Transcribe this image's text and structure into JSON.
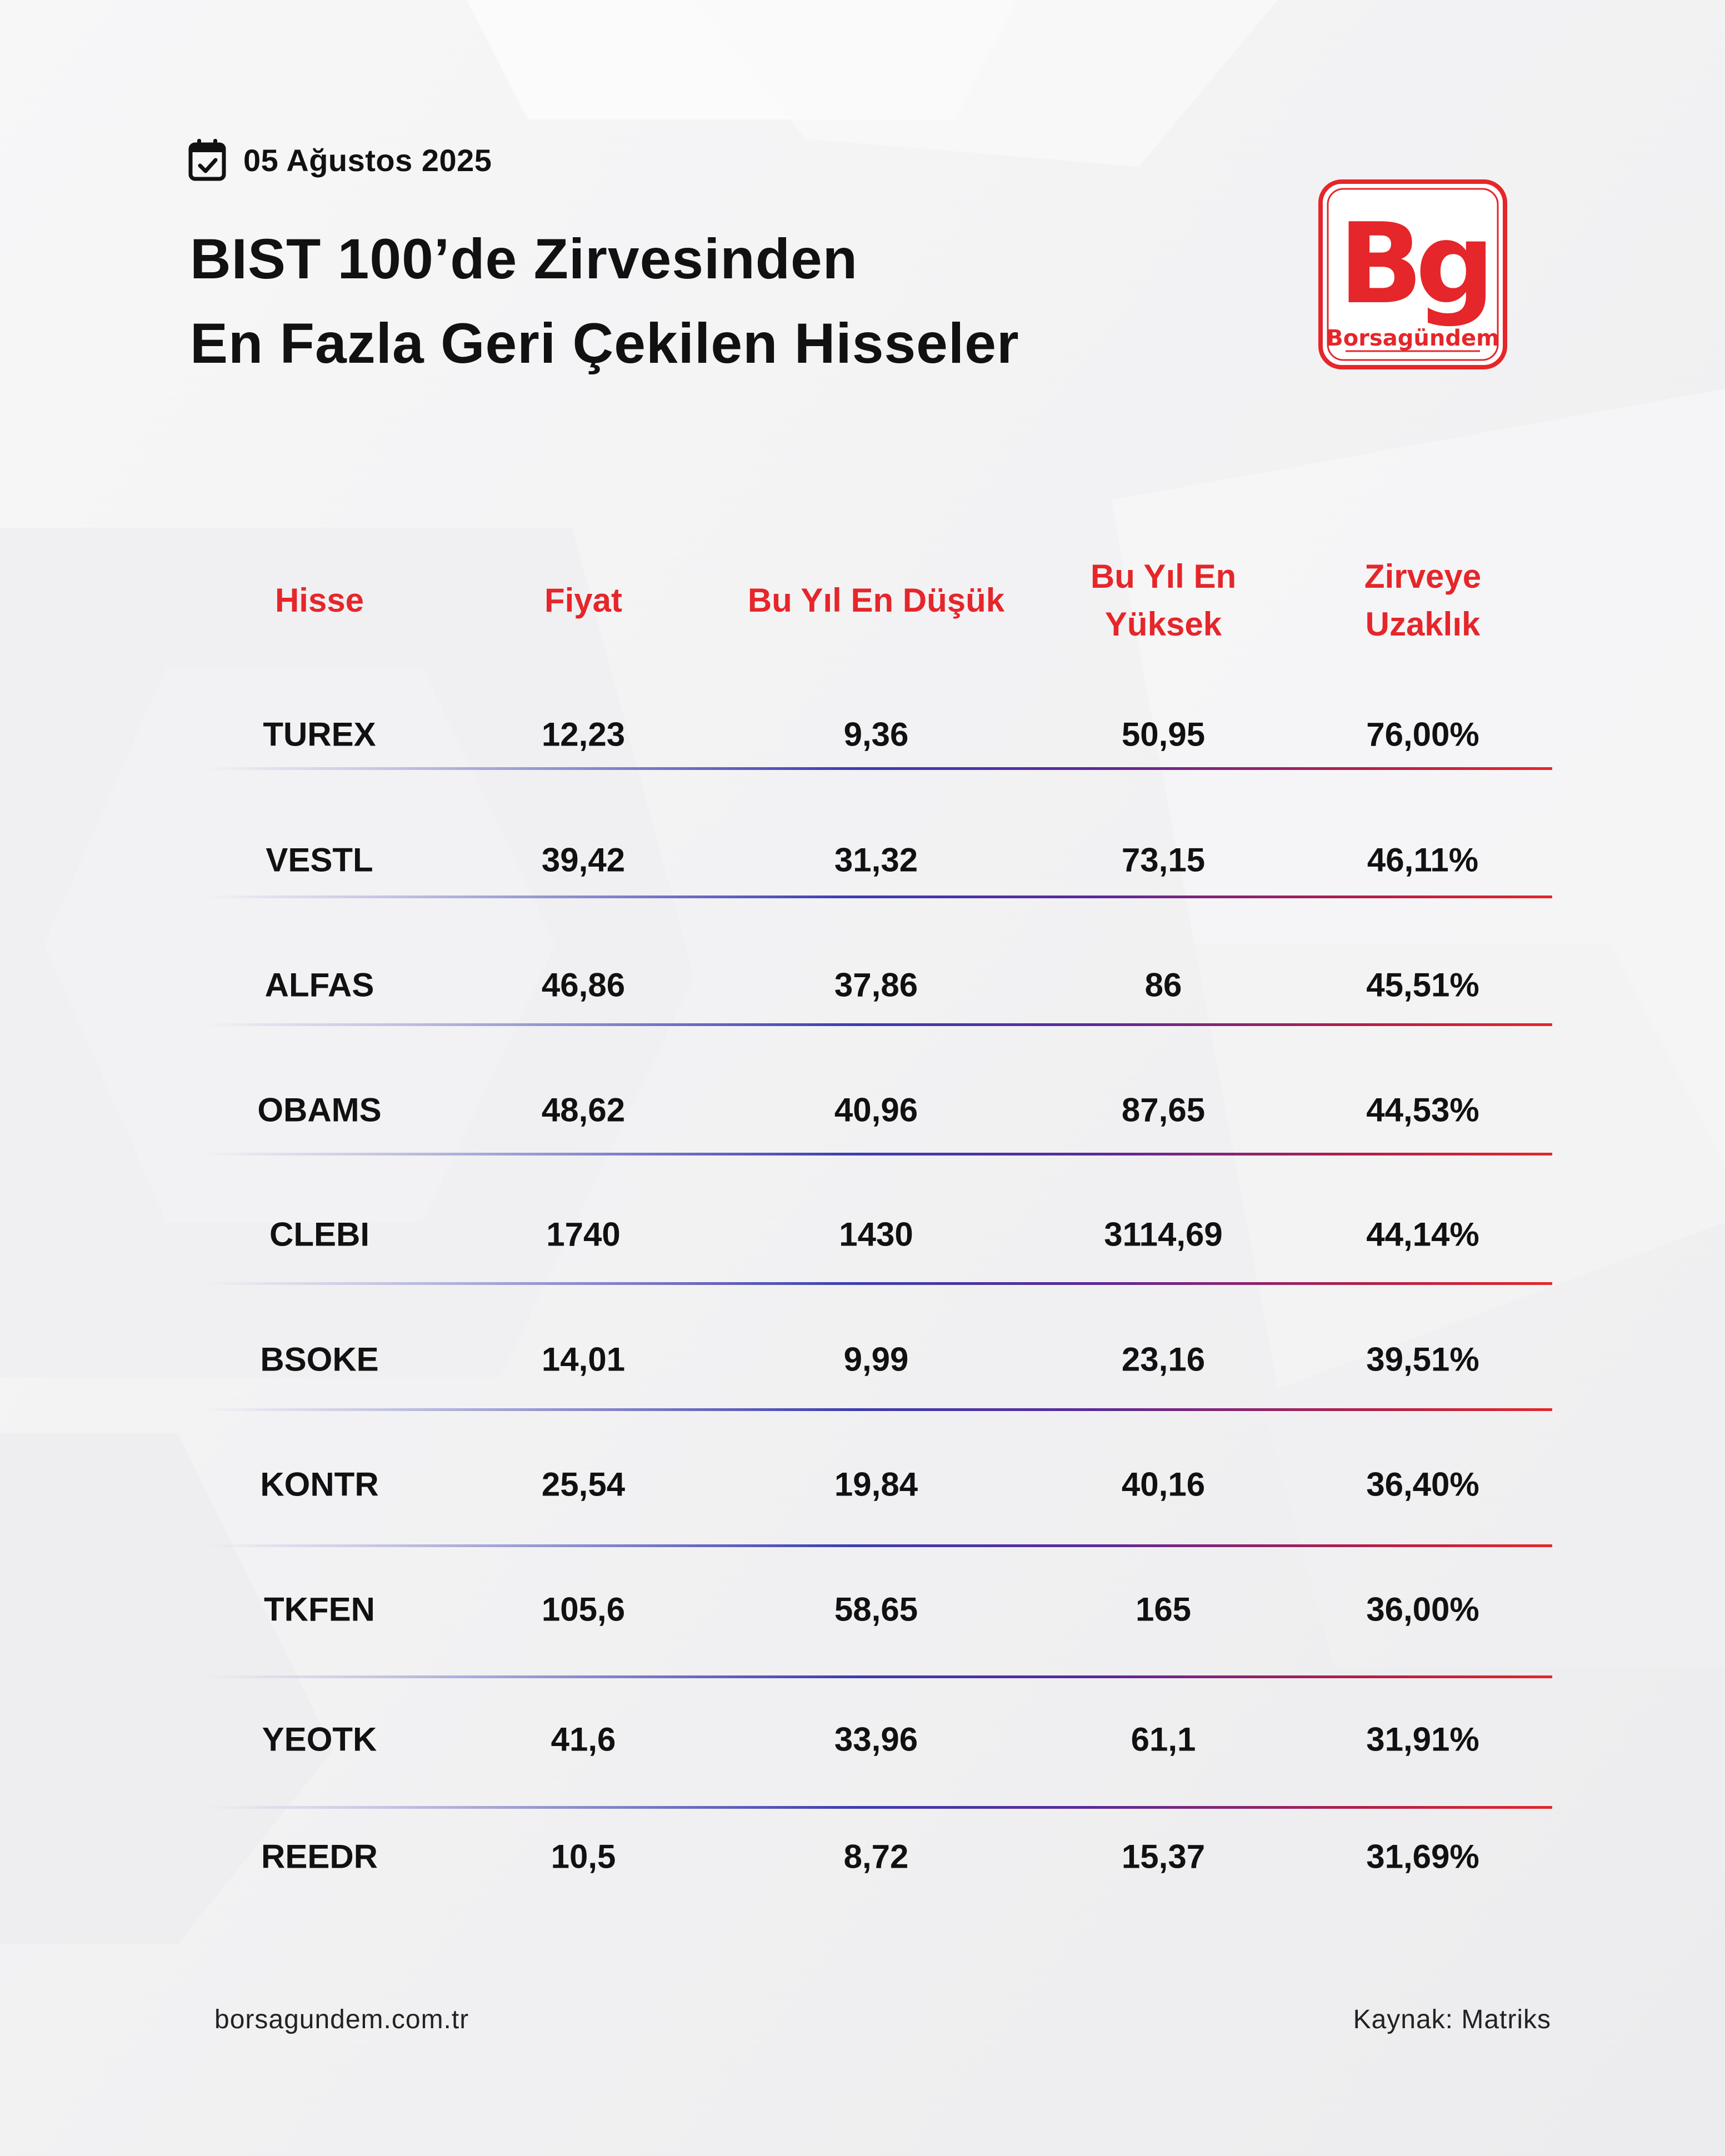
{
  "header": {
    "date": "05 Ağustos 2025",
    "title_line1": "BIST 100’de Zirvesinden",
    "title_line2": "En Fazla Geri Çekilen Hisseler",
    "logo_text": "Bg",
    "logo_caption": "Borsagündem",
    "calendar_icon": "calendar-check-icon"
  },
  "colors": {
    "accent": "#e5262a",
    "text": "#111111",
    "line_start": "#c9c9e4",
    "line_mid": "#3d3db0",
    "line_end": "#e5262a"
  },
  "chart_data": {
    "type": "table",
    "columns": [
      "Hisse",
      "Fiyat",
      "Bu Yıl En Düşük",
      "Bu Yıl En Yüksek",
      "Zirveye Uzaklık"
    ],
    "rows": [
      [
        "TUREX",
        "12,23",
        "9,36",
        "50,95",
        "76,00%"
      ],
      [
        "VESTL",
        "39,42",
        "31,32",
        "73,15",
        "46,11%"
      ],
      [
        "ALFAS",
        "46,86",
        "37,86",
        "86",
        "45,51%"
      ],
      [
        "OBAMS",
        "48,62",
        "40,96",
        "87,65",
        "44,53%"
      ],
      [
        "CLEBI",
        "1740",
        "1430",
        "3114,69",
        "44,14%"
      ],
      [
        "BSOKE",
        "14,01",
        "9,99",
        "23,16",
        "39,51%"
      ],
      [
        "KONTR",
        "25,54",
        "19,84",
        "40,16",
        "36,40%"
      ],
      [
        "TKFEN",
        "105,6",
        "58,65",
        "165",
        "36,00%"
      ],
      [
        "YEOTK",
        "41,6",
        "33,96",
        "61,1",
        "31,91%"
      ],
      [
        "REEDR",
        "10,5",
        "8,72",
        "15,37",
        "31,69%"
      ]
    ]
  },
  "footer": {
    "website": "borsagundem.com.tr",
    "source": "Kaynak:  Matriks"
  }
}
